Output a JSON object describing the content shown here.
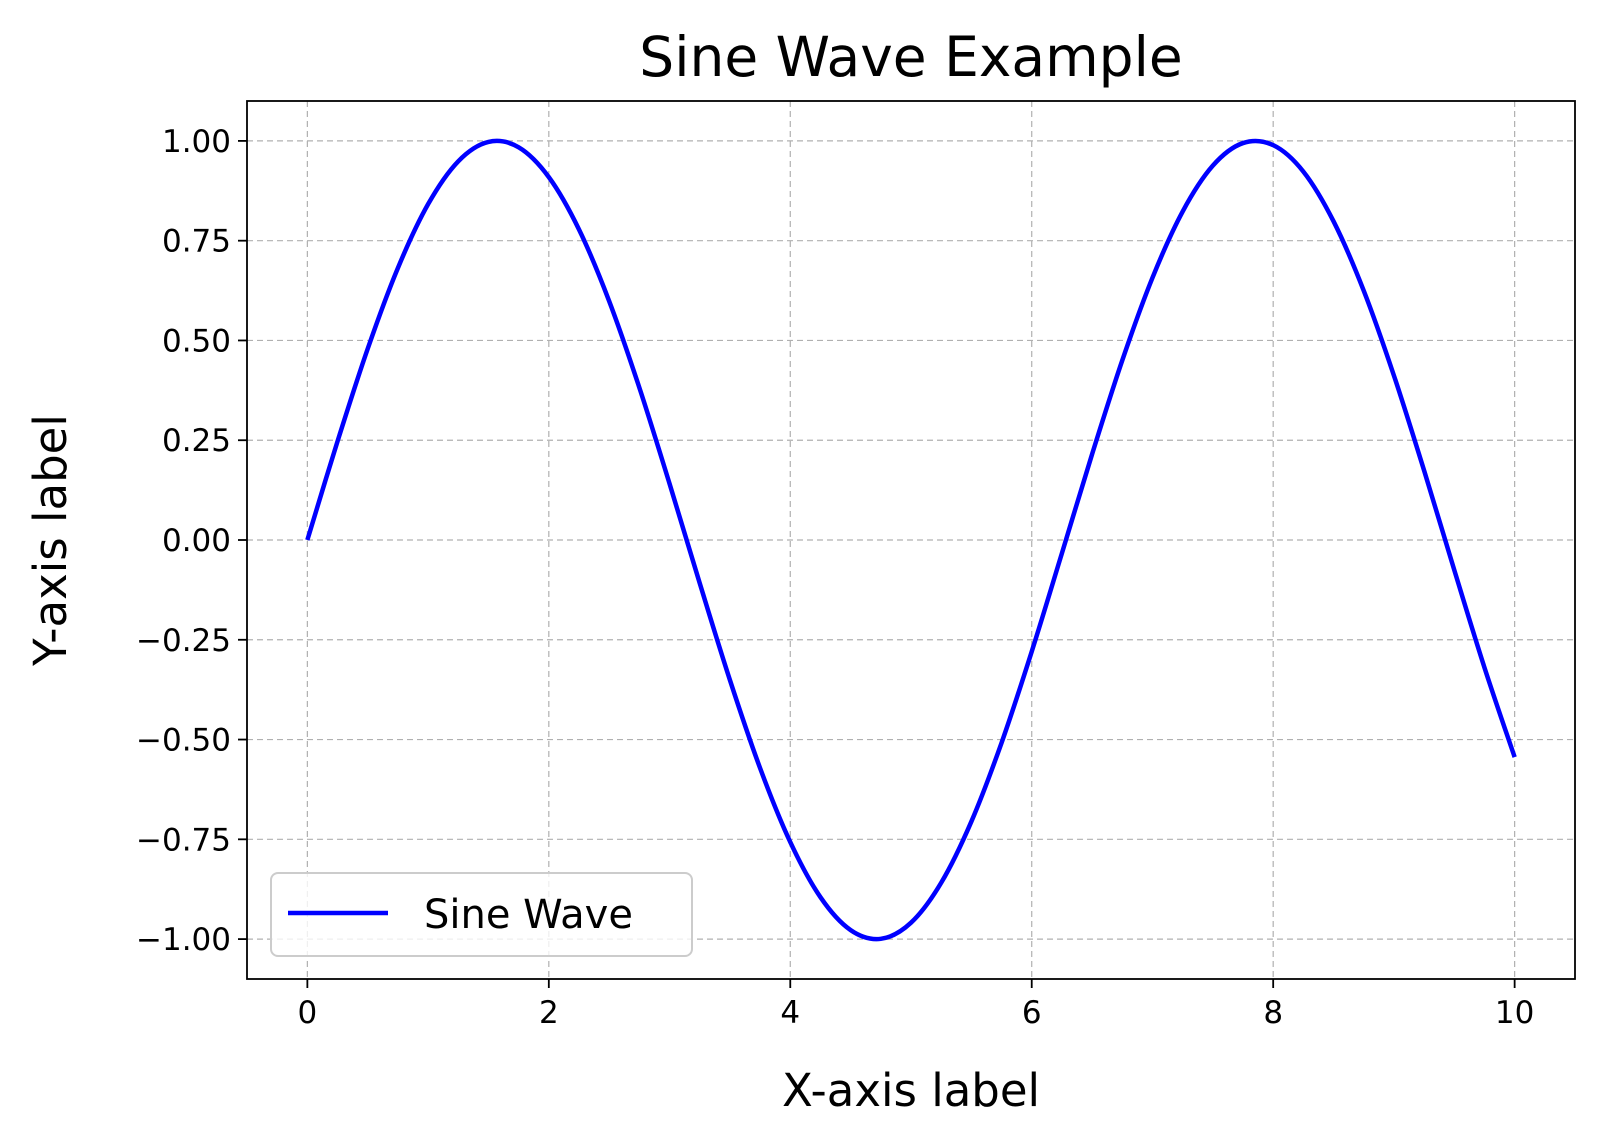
{
  "chart_data": {
    "type": "line",
    "title": "Sine Wave Example",
    "xlabel": "X-axis label",
    "ylabel": "Y-axis label",
    "xlim": [
      -0.5,
      10.5
    ],
    "ylim": [
      -1.1,
      1.1
    ],
    "x_ticks": [
      0,
      2,
      4,
      6,
      8,
      10
    ],
    "x_tick_labels": [
      "0",
      "2",
      "4",
      "6",
      "8",
      "10"
    ],
    "y_ticks": [
      1.0,
      0.75,
      0.5,
      0.25,
      0.0,
      -0.25,
      -0.5,
      -0.75,
      -1.0
    ],
    "y_tick_labels": [
      "1.00",
      "0.75",
      "0.50",
      "0.25",
      "0.00",
      "−0.25",
      "−0.50",
      "−0.75",
      "−1.00"
    ],
    "grid": true,
    "legend_position": "lower-left",
    "series": [
      {
        "name": "Sine Wave",
        "color": "#0000ff",
        "x": [
          0.0,
          0.25,
          0.5,
          0.75,
          1.0,
          1.25,
          1.5,
          1.75,
          2.0,
          2.25,
          2.5,
          2.75,
          3.0,
          3.25,
          3.5,
          3.75,
          4.0,
          4.25,
          4.5,
          4.75,
          5.0,
          5.25,
          5.5,
          5.75,
          6.0,
          6.25,
          6.5,
          6.75,
          7.0,
          7.25,
          7.5,
          7.75,
          8.0,
          8.25,
          8.5,
          8.75,
          9.0,
          9.25,
          9.5,
          9.75,
          10.0
        ],
        "values": [
          0.0,
          0.2474,
          0.4794,
          0.6816,
          0.8415,
          0.949,
          0.9975,
          0.984,
          0.9093,
          0.7781,
          0.5985,
          0.3817,
          0.1411,
          -0.1082,
          -0.3508,
          -0.5716,
          -0.7568,
          -0.895,
          -0.9775,
          -0.9993,
          -0.9589,
          -0.8589,
          -0.7055,
          -0.5082,
          -0.2794,
          -0.0332,
          0.2151,
          0.45,
          0.657,
          0.8231,
          0.938,
          0.9946,
          0.9894,
          0.9231,
          0.7985,
          0.6247,
          0.4121,
          0.1743,
          -0.0752,
          -0.3195,
          -0.544
        ]
      }
    ]
  }
}
